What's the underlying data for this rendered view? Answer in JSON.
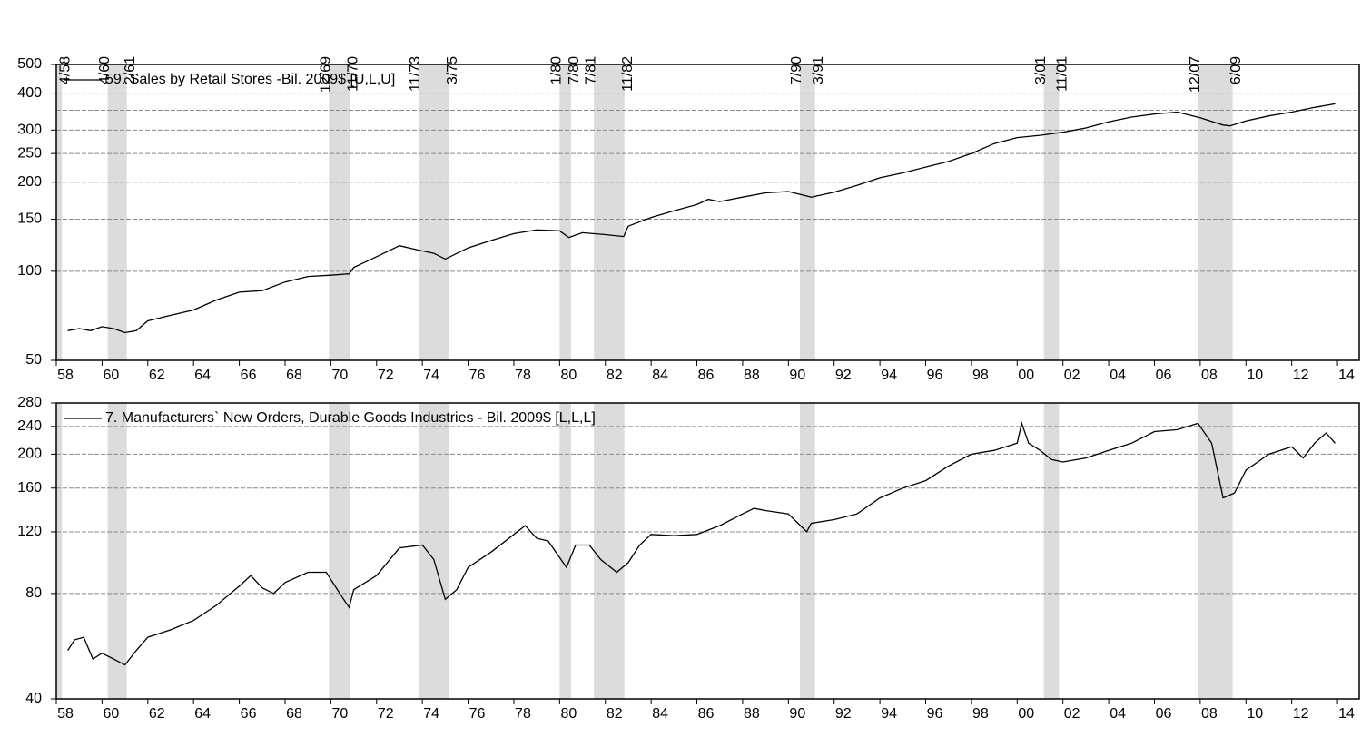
{
  "recessions": [
    {
      "end": 1958.25,
      "end_label": "4/58"
    },
    {
      "start": 1960.25,
      "end": 1961.083,
      "start_label": "4/60",
      "end_label": "2/61"
    },
    {
      "start": 1969.917,
      "end": 1970.833,
      "start_label": "12/69",
      "end_label": "11/70"
    },
    {
      "start": 1973.833,
      "end": 1975.167,
      "start_label": "11/73",
      "end_label": "3/75"
    },
    {
      "start": 1980.0,
      "end": 1980.5,
      "start_label": "1/80",
      "end_label": "7/80"
    },
    {
      "start": 1981.5,
      "end": 1982.833,
      "start_label": "7/81",
      "end_label": "11/82"
    },
    {
      "start": 1990.5,
      "end": 1991.167,
      "start_label": "7/90",
      "end_label": "3/91"
    },
    {
      "start": 2001.167,
      "end": 2001.833,
      "start_label": "3/01",
      "end_label": "11/01"
    },
    {
      "start": 2007.917,
      "end": 2009.417,
      "start_label": "12/07",
      "end_label": "6/09"
    }
  ],
  "chart_data": [
    {
      "type": "line",
      "log_y": true,
      "grid": true,
      "xlim": [
        1958.0,
        2014.95
      ],
      "ylim": [
        50,
        500
      ],
      "yticks": [
        50,
        100,
        150,
        200,
        250,
        300,
        400,
        500
      ],
      "yminor_grid": [
        350
      ],
      "xticks": [
        {
          "value": 1958,
          "label": "58"
        },
        {
          "value": 1960,
          "label": "60"
        },
        {
          "value": 1962,
          "label": "62"
        },
        {
          "value": 1964,
          "label": "64"
        },
        {
          "value": 1966,
          "label": "66"
        },
        {
          "value": 1968,
          "label": "68"
        },
        {
          "value": 1970,
          "label": "70"
        },
        {
          "value": 1972,
          "label": "72"
        },
        {
          "value": 1974,
          "label": "74"
        },
        {
          "value": 1976,
          "label": "76"
        },
        {
          "value": 1978,
          "label": "78"
        },
        {
          "value": 1980,
          "label": "80"
        },
        {
          "value": 1982,
          "label": "82"
        },
        {
          "value": 1984,
          "label": "84"
        },
        {
          "value": 1986,
          "label": "86"
        },
        {
          "value": 1988,
          "label": "88"
        },
        {
          "value": 1990,
          "label": "90"
        },
        {
          "value": 1992,
          "label": "92"
        },
        {
          "value": 1994,
          "label": "94"
        },
        {
          "value": 1996,
          "label": "96"
        },
        {
          "value": 1998,
          "label": "98"
        },
        {
          "value": 2000,
          "label": "00"
        },
        {
          "value": 2002,
          "label": "02"
        },
        {
          "value": 2004,
          "label": "04"
        },
        {
          "value": 2006,
          "label": "06"
        },
        {
          "value": 2008,
          "label": "08"
        },
        {
          "value": 2010,
          "label": "10"
        },
        {
          "value": 2012,
          "label": "12"
        },
        {
          "value": 2014,
          "label": "14"
        }
      ],
      "series": [
        {
          "name": "59. Sales by Retail Stores -Bil. 2009$ [U,L,U]",
          "color": "#000000",
          "x": [
            1958.5,
            1959,
            1959.5,
            1960,
            1960.5,
            1961,
            1961.5,
            1962,
            1963,
            1964,
            1965,
            1966,
            1967,
            1968,
            1969,
            1970,
            1970.8,
            1971,
            1972,
            1973,
            1973.8,
            1974.5,
            1975,
            1976,
            1977,
            1978,
            1979,
            1980,
            1980.4,
            1981,
            1982,
            1982.8,
            1983,
            1984,
            1985,
            1986,
            1986.5,
            1987,
            1988,
            1989,
            1990,
            1991,
            1992,
            1993,
            1994,
            1995,
            1996,
            1997,
            1998,
            1999,
            2000,
            2001,
            2002,
            2003,
            2004,
            2005,
            2006,
            2007,
            2008,
            2009,
            2009.3,
            2010,
            2011,
            2012,
            2013,
            2013.9
          ],
          "values": [
            63,
            64,
            63,
            65,
            64,
            62,
            63,
            68,
            71,
            74,
            80,
            85,
            86,
            92,
            96,
            97,
            98,
            103,
            112,
            122,
            118,
            115,
            110,
            120,
            127,
            134,
            138,
            137,
            130,
            135,
            133,
            131,
            142,
            152,
            160,
            168,
            175,
            172,
            178,
            184,
            186,
            178,
            185,
            195,
            207,
            215,
            225,
            235,
            250,
            270,
            283,
            288,
            295,
            305,
            320,
            332,
            340,
            345,
            330,
            312,
            310,
            322,
            335,
            345,
            358,
            368
          ]
        }
      ]
    },
    {
      "type": "line",
      "log_y": true,
      "grid": true,
      "xlim": [
        1958.0,
        2014.95
      ],
      "ylim": [
        40,
        280
      ],
      "yticks": [
        40,
        80,
        120,
        160,
        200,
        240,
        280
      ],
      "xticks": [
        {
          "value": 1958,
          "label": "58"
        },
        {
          "value": 1960,
          "label": "60"
        },
        {
          "value": 1962,
          "label": "62"
        },
        {
          "value": 1964,
          "label": "64"
        },
        {
          "value": 1966,
          "label": "66"
        },
        {
          "value": 1968,
          "label": "68"
        },
        {
          "value": 1970,
          "label": "70"
        },
        {
          "value": 1972,
          "label": "72"
        },
        {
          "value": 1974,
          "label": "74"
        },
        {
          "value": 1976,
          "label": "76"
        },
        {
          "value": 1978,
          "label": "78"
        },
        {
          "value": 1980,
          "label": "80"
        },
        {
          "value": 1982,
          "label": "82"
        },
        {
          "value": 1984,
          "label": "84"
        },
        {
          "value": 1986,
          "label": "86"
        },
        {
          "value": 1988,
          "label": "88"
        },
        {
          "value": 1990,
          "label": "90"
        },
        {
          "value": 1992,
          "label": "92"
        },
        {
          "value": 1994,
          "label": "94"
        },
        {
          "value": 1996,
          "label": "96"
        },
        {
          "value": 1998,
          "label": "98"
        },
        {
          "value": 2000,
          "label": "00"
        },
        {
          "value": 2002,
          "label": "02"
        },
        {
          "value": 2004,
          "label": "04"
        },
        {
          "value": 2006,
          "label": "06"
        },
        {
          "value": 2008,
          "label": "08"
        },
        {
          "value": 2010,
          "label": "10"
        },
        {
          "value": 2012,
          "label": "12"
        },
        {
          "value": 2014,
          "label": "14"
        }
      ],
      "series": [
        {
          "name": "7. Manufacturers` New Orders, Durable Goods Industries - Bil. 2009$ [L,L,L]",
          "color": "#000000",
          "x": [
            1958.5,
            1958.8,
            1959.2,
            1959.6,
            1960,
            1960.5,
            1961,
            1961.5,
            1962,
            1963,
            1964,
            1965,
            1966,
            1966.5,
            1967,
            1967.5,
            1968,
            1969,
            1969.8,
            1970.5,
            1970.8,
            1971,
            1972,
            1973,
            1974,
            1974.5,
            1975,
            1975.5,
            1976,
            1977,
            1978,
            1978.5,
            1979,
            1979.5,
            1980.3,
            1980.7,
            1981.3,
            1981.8,
            1982.5,
            1983,
            1983.5,
            1984,
            1985,
            1986,
            1987,
            1988,
            1988.5,
            1989,
            1990,
            1990.8,
            1991,
            1992,
            1993,
            1994,
            1995,
            1996,
            1997,
            1998,
            1999,
            2000,
            2000.2,
            2000.5,
            2001,
            2001.5,
            2002,
            2003,
            2004,
            2005,
            2006,
            2007,
            2007.9,
            2008.5,
            2009,
            2009.5,
            2010,
            2011,
            2012,
            2012.5,
            2013,
            2013.5,
            2013.9
          ],
          "values": [
            55,
            59,
            60,
            52,
            54,
            52,
            50,
            55,
            60,
            63,
            67,
            74,
            84,
            90,
            83,
            80,
            86,
            92,
            92,
            78,
            73,
            82,
            90,
            108,
            110,
            100,
            77,
            82,
            95,
            105,
            118,
            125,
            115,
            113,
            95,
            110,
            110,
            100,
            92,
            98,
            110,
            118,
            117,
            118,
            125,
            135,
            140,
            138,
            135,
            120,
            127,
            130,
            135,
            150,
            160,
            168,
            185,
            200,
            205,
            215,
            245,
            215,
            205,
            193,
            190,
            195,
            205,
            215,
            232,
            235,
            245,
            215,
            150,
            155,
            180,
            200,
            210,
            195,
            215,
            230,
            215
          ]
        }
      ]
    }
  ]
}
